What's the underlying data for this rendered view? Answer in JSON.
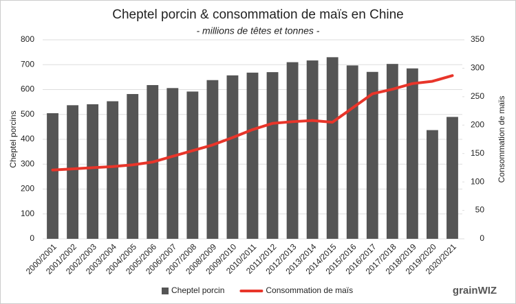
{
  "chart_data": {
    "type": "bar",
    "title": "Cheptel porcin & consommation de maïs en Chine",
    "subtitle": "- millions de têtes et tonnes -",
    "ylabel": "Cheptel porcins",
    "y2label": "Consommation de maïs",
    "categories": [
      "2000/2001",
      "2001/2002",
      "2002/2003",
      "2003/2004",
      "2004/2005",
      "2005/2006",
      "2006/2007",
      "2007/2008",
      "2008/2009",
      "2009/2010",
      "2010/2011",
      "2011/2012",
      "2012/2013",
      "2013/2014",
      "2014/2015",
      "2015/2016",
      "2016/2017",
      "2017/2018",
      "2018/2019",
      "2019/2020",
      "2020/2021"
    ],
    "series": [
      {
        "name": "Cheptel porcin",
        "color": "#555555",
        "values": [
          505,
          537,
          541,
          553,
          582,
          618,
          606,
          592,
          638,
          657,
          668,
          670,
          710,
          717,
          730,
          697,
          671,
          703,
          685,
          437,
          490
        ]
      },
      {
        "name": "Consommation de maïs",
        "color": "#e8352a",
        "type": "line",
        "axis": "y2",
        "values": [
          121,
          123,
          125,
          127,
          130,
          135,
          145,
          155,
          165,
          178,
          192,
          203,
          206,
          208,
          205,
          230,
          255,
          263,
          273,
          277,
          287
        ]
      }
    ],
    "ylim": [
      0,
      800
    ],
    "yticks": [
      0,
      100,
      200,
      300,
      400,
      500,
      600,
      700,
      800
    ],
    "y2lim": [
      0,
      350
    ],
    "y2ticks": [
      0,
      50,
      100,
      150,
      200,
      250,
      300,
      350
    ],
    "grid": true,
    "legend": "bottom",
    "logo": "grainWIZ"
  }
}
